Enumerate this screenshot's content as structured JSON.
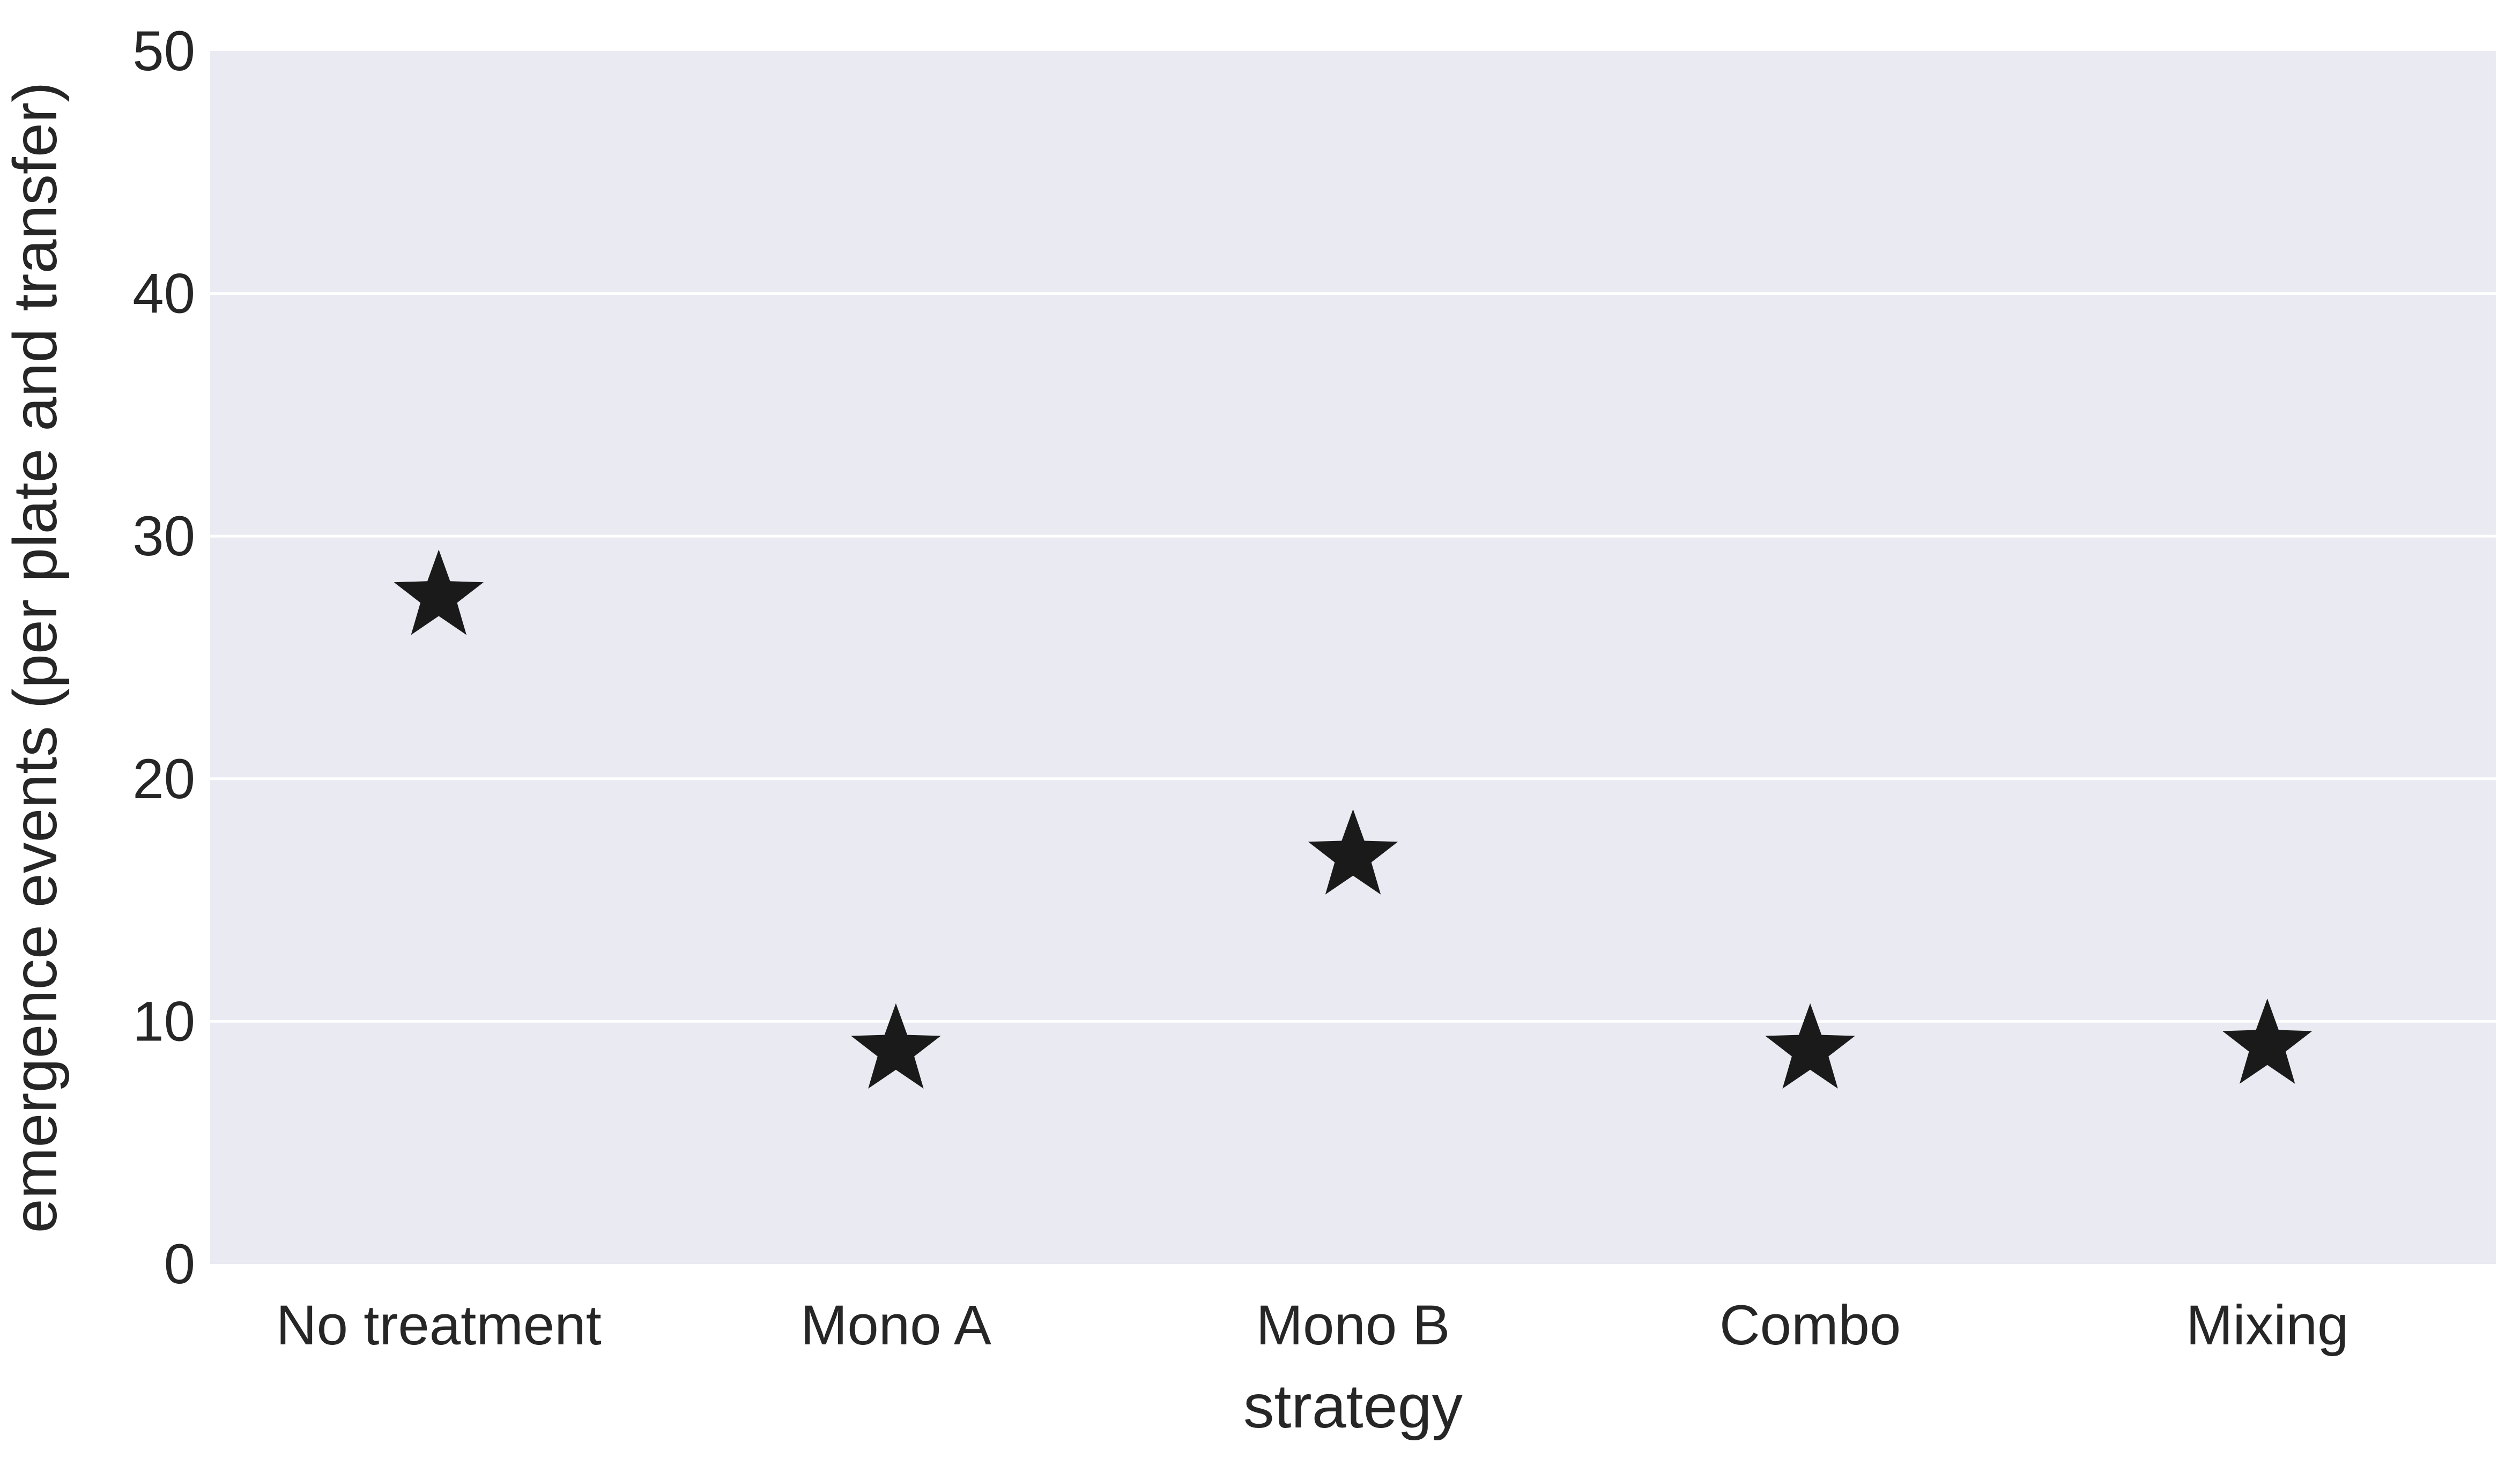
{
  "chart_data": {
    "type": "scatter",
    "title": "",
    "xlabel": "strategy",
    "ylabel": "emergence events (per plate and transfer)",
    "categories": [
      "No treatment",
      "Mono A",
      "Mono B",
      "Combo",
      "Mixing"
    ],
    "series": [
      {
        "values": [
          27.5,
          8.8,
          16.8,
          8.8,
          9.0
        ]
      }
    ],
    "ylim": [
      0,
      50
    ],
    "yticks": [
      "0",
      "10",
      "20",
      "30",
      "40",
      "50"
    ],
    "grid": true,
    "marker": "star",
    "colors": {
      "background": "#EAEAF2",
      "grid": "#FFFFFF",
      "marker": "#1A1A1A",
      "text": "#262626"
    }
  }
}
